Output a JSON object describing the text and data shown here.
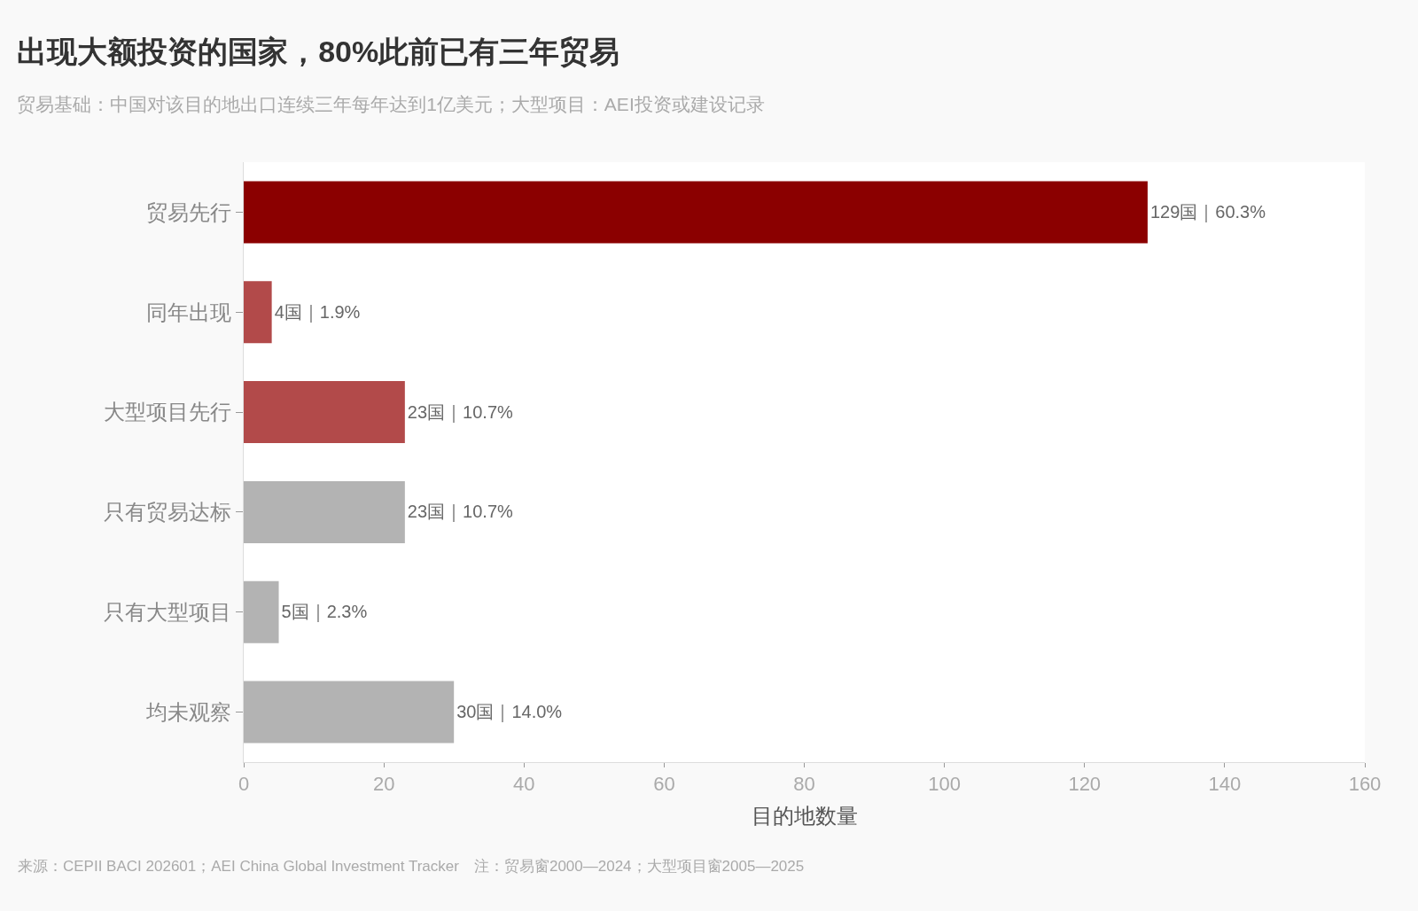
{
  "chart_data": {
    "type": "bar",
    "orientation": "horizontal",
    "title": "出现大额投资的国家，80%此前已有三年贸易",
    "subtitle": "贸易基础：中国对该目的地出口连续三年每年达到1亿美元；大型项目：AEI投资或建设记录",
    "xlabel": "目的地数量",
    "categories": [
      "贸易先行",
      "同年出现",
      "大型项目先行",
      "只有贸易达标",
      "只有大型项目",
      "均未观察"
    ],
    "values": [
      129,
      4,
      23,
      23,
      5,
      30
    ],
    "colors": [
      "#8b0000",
      "#b24a4a",
      "#b24a4a",
      "#b3b3b3",
      "#b3b3b3",
      "#b3b3b3"
    ],
    "value_labels": [
      "129国｜60.3%",
      "4国｜1.9%",
      "23国｜10.7%",
      "23国｜10.7%",
      "5国｜2.3%",
      "30国｜14.0%"
    ],
    "xlim": [
      0,
      160
    ],
    "xticks": [
      0,
      20,
      40,
      60,
      80,
      100,
      120,
      140,
      160
    ],
    "legend": false,
    "annotations": [
      "来源：CEPII BACI 202601；AEI China Global Investment Tracker　注：贸易窗2000—2024；大型项目窗2005—2025"
    ]
  }
}
